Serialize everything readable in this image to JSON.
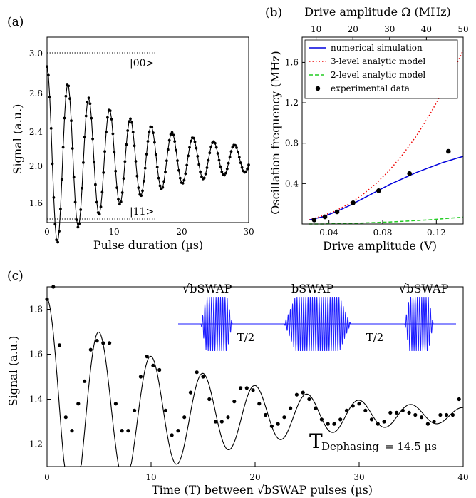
{
  "chart_data": [
    {
      "panel": "(a)",
      "type": "line",
      "xlabel": "Pulse duration (µs)",
      "ylabel": "Signal (a.u.)",
      "xlim": [
        0,
        30
      ],
      "ylim": [
        1.42,
        3.12
      ],
      "x_ticks": [
        "0",
        "10",
        "20",
        "30"
      ],
      "y_ticks": [
        "1.6",
        "2.0",
        "2.4",
        "2.8",
        "3.0"
      ],
      "annotations": [
        {
          "text": "|00>",
          "ref_y": 3.0,
          "line_style": "dotted"
        },
        {
          "text": "|11>",
          "ref_y": 1.45,
          "line_style": "dotted"
        }
      ],
      "series": [
        {
          "style": "line-with-markers",
          "model": {
            "center": 2.0,
            "amp_start": 0.85,
            "decay_time_us": 15,
            "period_us": 3.1,
            "phase": "cosine"
          },
          "x": [
            0,
            0.2,
            0.4,
            0.6,
            0.8,
            1.0,
            1.2,
            1.4,
            1.6,
            1.8,
            2.0,
            2.2,
            2.4,
            2.6,
            2.8,
            3.0,
            3.2,
            3.4,
            3.6,
            3.8,
            4.0,
            4.2,
            4.4,
            4.6,
            4.8,
            5.0,
            5.2,
            5.4,
            5.6,
            5.8,
            6.0,
            6.2,
            6.4,
            6.6,
            6.8,
            7.0,
            7.2,
            7.4,
            7.6,
            7.8,
            8.0,
            8.2,
            8.4,
            8.6,
            8.8,
            9.0,
            9.2,
            9.4,
            9.6,
            9.8,
            10.0,
            10.2,
            10.4,
            10.6,
            10.8,
            11.0,
            11.2,
            11.4,
            11.6,
            11.8,
            12.0,
            12.2,
            12.4,
            12.6,
            12.8,
            13.0,
            13.2,
            13.4,
            13.6,
            13.8,
            14.0,
            14.2,
            14.4,
            14.6,
            14.8,
            15.0,
            15.2,
            15.4,
            15.6,
            15.8,
            16.0,
            16.2,
            16.4,
            16.6,
            16.8,
            17.0,
            17.2,
            17.4,
            17.6,
            17.8,
            18.0,
            18.2,
            18.4,
            18.6,
            18.8,
            19.0,
            19.2,
            19.4,
            19.6,
            19.8,
            20.0,
            20.2,
            20.4,
            20.6,
            20.8,
            21.0,
            21.2,
            21.4,
            21.6,
            21.8,
            22.0,
            22.2,
            22.4,
            22.6,
            22.8,
            23.0,
            23.2,
            23.4,
            23.6,
            23.8,
            24.0,
            24.2,
            24.4,
            24.6,
            24.8,
            25.0,
            25.2,
            25.4,
            25.6,
            25.8,
            26.0,
            26.2,
            26.4,
            26.6,
            26.8,
            27.0,
            27.2,
            27.4,
            27.6,
            27.8,
            28.0,
            28.2,
            28.4,
            28.6,
            28.8,
            29.0,
            29.2,
            29.4,
            29.6,
            29.8,
            30.0
          ]
        }
      ]
    },
    {
      "panel": "(b)",
      "type": "line",
      "xlabel": "Drive amplitude (V)",
      "ylabel": "Oscillation frequency (MHz)",
      "x2label": "Drive amplitude Ω (MHz)",
      "xlim": [
        0.02,
        0.14
      ],
      "ylim": [
        0,
        1.85
      ],
      "x2lim": [
        6.2,
        50
      ],
      "x_ticks": [
        "0.04",
        "0.08",
        "0.12"
      ],
      "x_tick_values": [
        0.04,
        0.08,
        0.12
      ],
      "x2_ticks": [
        "10",
        "20",
        "30",
        "40",
        "50"
      ],
      "x2_tick_values": [
        10,
        20,
        30,
        40,
        50
      ],
      "y_ticks": [
        "0.4",
        "0.8",
        "1.2",
        "1.6"
      ],
      "y_tick_values": [
        0.4,
        0.8,
        1.2,
        1.6
      ],
      "legend_position": "top-left",
      "series": [
        {
          "name": "numerical simulation",
          "color": "#0000dd",
          "style": "solid",
          "x": [
            0.025,
            0.035,
            0.045,
            0.055,
            0.065,
            0.075,
            0.085,
            0.095,
            0.105,
            0.115,
            0.125,
            0.135,
            0.14
          ],
          "y": [
            0.04,
            0.07,
            0.12,
            0.18,
            0.25,
            0.32,
            0.39,
            0.45,
            0.51,
            0.56,
            0.61,
            0.65,
            0.67
          ]
        },
        {
          "name": "3-level analytic model",
          "color": "#ee0000",
          "style": "dotted",
          "x": [
            0.025,
            0.035,
            0.045,
            0.055,
            0.065,
            0.075,
            0.085,
            0.095,
            0.105,
            0.115,
            0.125,
            0.135,
            0.14
          ],
          "y": [
            0.04,
            0.08,
            0.13,
            0.2,
            0.29,
            0.4,
            0.53,
            0.69,
            0.87,
            1.08,
            1.32,
            1.58,
            1.72
          ]
        },
        {
          "name": "2-level analytic model",
          "color": "#22cc22",
          "style": "dashed",
          "x": [
            0.025,
            0.035,
            0.045,
            0.055,
            0.065,
            0.075,
            0.085,
            0.095,
            0.105,
            0.115,
            0.125,
            0.135,
            0.14
          ],
          "y": [
            0.0,
            0.0,
            0.003,
            0.006,
            0.01,
            0.015,
            0.02,
            0.027,
            0.034,
            0.042,
            0.052,
            0.062,
            0.068
          ]
        },
        {
          "name": "experimental data",
          "color": "#000000",
          "style": "markers",
          "x": [
            0.029,
            0.037,
            0.046,
            0.058,
            0.077,
            0.1,
            0.129
          ],
          "y": [
            0.04,
            0.07,
            0.12,
            0.21,
            0.33,
            0.5,
            0.72
          ]
        }
      ]
    },
    {
      "panel": "(c)",
      "type": "scatter",
      "xlabel": "Time (T) between √bSWAP pulses (µs)",
      "ylabel": "Signal (a.u.)",
      "xlim": [
        0,
        40
      ],
      "ylim": [
        1.1,
        1.9
      ],
      "x_ticks": [
        "0",
        "10",
        "20",
        "30",
        "40"
      ],
      "x_tick_values": [
        0,
        10,
        20,
        30,
        40
      ],
      "y_ticks": [
        "1.2",
        "1.4",
        "1.6",
        "1.8"
      ],
      "y_tick_values": [
        1.2,
        1.4,
        1.6,
        1.8
      ],
      "inset_labels": {
        "pulse1": "√bSWAP",
        "pulse2": "bSWAP",
        "pulse3": "√bSWAP",
        "gap1": "T/2",
        "gap2": "T/2"
      },
      "annotation": {
        "symbol": "T",
        "subscript": "Dephasing",
        "value": "= 14.5 µs"
      },
      "fit_model": {
        "center": 1.33,
        "amp_start": 0.52,
        "decay_time_us": 14.5,
        "period_us": 5.0,
        "phase": "cosine"
      },
      "points": {
        "x": [
          0.0,
          0.6,
          1.2,
          1.8,
          2.4,
          3.0,
          3.6,
          4.2,
          4.8,
          5.4,
          6.0,
          6.6,
          7.2,
          7.8,
          8.4,
          9.0,
          9.6,
          10.2,
          10.8,
          11.4,
          12.0,
          12.6,
          13.2,
          13.8,
          14.4,
          15.0,
          15.6,
          16.2,
          16.8,
          17.4,
          18.0,
          18.6,
          19.2,
          19.8,
          20.4,
          21.0,
          21.6,
          22.2,
          22.8,
          23.4,
          24.0,
          24.6,
          25.2,
          25.8,
          26.4,
          27.0,
          27.6,
          28.2,
          28.8,
          29.4,
          30.0,
          30.6,
          31.2,
          31.8,
          32.4,
          33.0,
          33.6,
          34.2,
          34.8,
          35.4,
          36.0,
          36.6,
          37.2,
          37.8,
          38.4,
          39.0,
          39.6
        ],
        "y": [
          1.845,
          1.9,
          1.64,
          1.32,
          1.26,
          1.38,
          1.48,
          1.62,
          1.66,
          1.65,
          1.65,
          1.38,
          1.26,
          1.26,
          1.35,
          1.5,
          1.59,
          1.55,
          1.53,
          1.35,
          1.24,
          1.26,
          1.32,
          1.43,
          1.52,
          1.5,
          1.4,
          1.3,
          1.3,
          1.32,
          1.39,
          1.45,
          1.45,
          1.44,
          1.38,
          1.33,
          1.28,
          1.29,
          1.32,
          1.36,
          1.42,
          1.43,
          1.4,
          1.36,
          1.31,
          1.29,
          1.29,
          1.31,
          1.35,
          1.37,
          1.38,
          1.35,
          1.31,
          1.29,
          1.3,
          1.34,
          1.34,
          1.35,
          1.34,
          1.33,
          1.32,
          1.29,
          1.3,
          1.33,
          1.33,
          1.33,
          1.4
        ]
      }
    }
  ]
}
